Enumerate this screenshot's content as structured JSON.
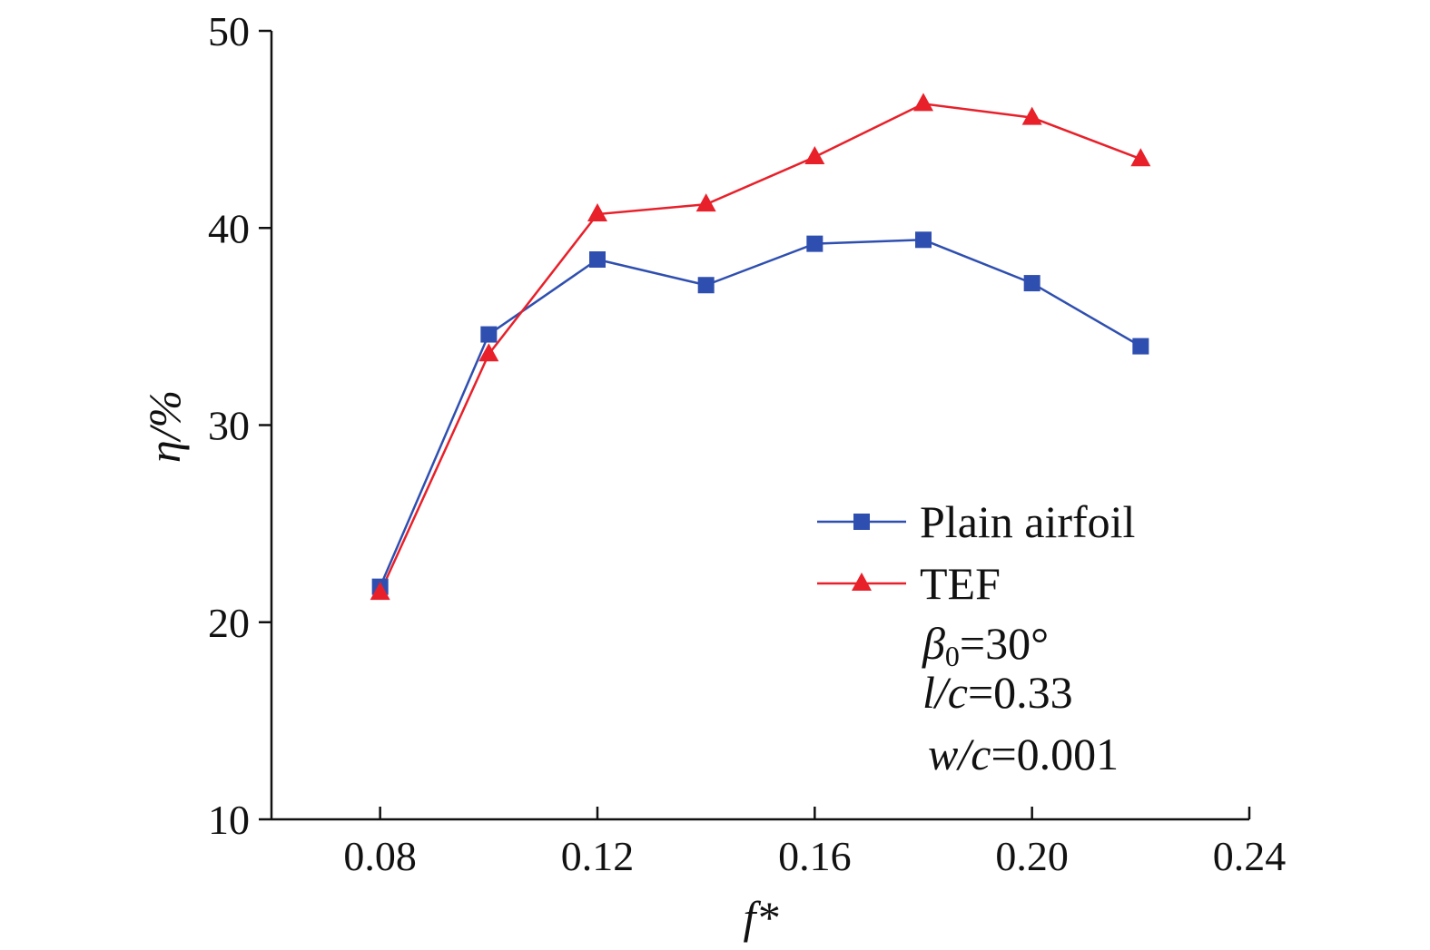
{
  "chart_data": {
    "type": "line",
    "title": "",
    "xlabel": "f*",
    "ylabel": "η/%",
    "xlim": [
      0.06,
      0.24
    ],
    "ylim": [
      10,
      50
    ],
    "xticks": [
      0.08,
      0.12,
      0.16,
      0.2,
      0.24
    ],
    "xtick_labels": [
      "0.08",
      "0.12",
      "0.16",
      "0.20",
      "0.24"
    ],
    "yticks": [
      10,
      20,
      30,
      40,
      50
    ],
    "ytick_labels": [
      "10",
      "20",
      "30",
      "40",
      "50"
    ],
    "grid": false,
    "legend_position": "bottom-right",
    "x": [
      0.08,
      0.1,
      0.12,
      0.14,
      0.16,
      0.18,
      0.2,
      0.22
    ],
    "series": [
      {
        "name": "Plain airfoil",
        "color": "#2f4fb0",
        "marker": "square",
        "values": [
          21.8,
          34.6,
          38.4,
          37.1,
          39.2,
          39.4,
          37.2,
          34.0
        ]
      },
      {
        "name": "TEF",
        "color": "#e8202a",
        "marker": "triangle",
        "values": [
          21.5,
          33.6,
          40.7,
          41.2,
          43.6,
          46.3,
          45.6,
          43.5
        ]
      }
    ],
    "annotations": {
      "beta": {
        "symbol": "β",
        "subscript": "0",
        "value": "=30°"
      },
      "lc": {
        "symbol": "l/c",
        "value": "=0.33"
      },
      "wc": {
        "symbol": "w/c",
        "value": "=0.001"
      }
    }
  }
}
